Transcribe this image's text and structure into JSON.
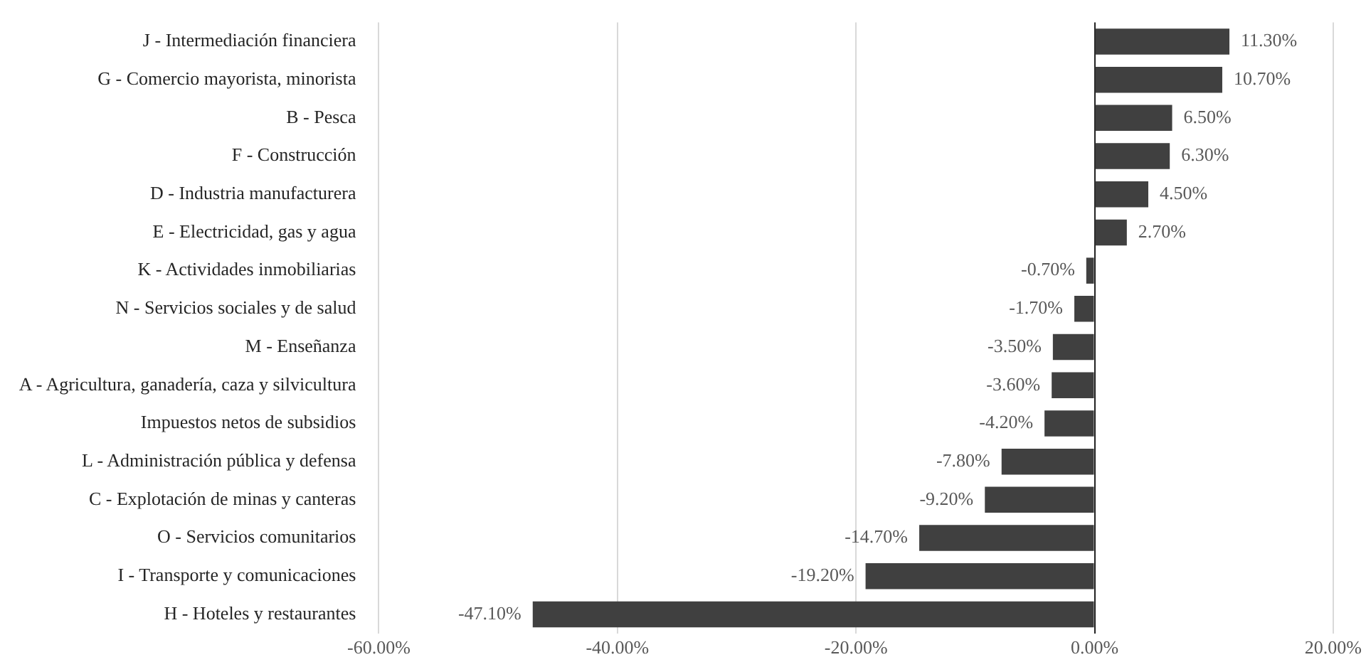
{
  "chart_data": {
    "type": "bar",
    "orientation": "horizontal",
    "categories": [
      "J - Intermediación financiera",
      "G - Comercio mayorista, minorista",
      "B - Pesca",
      "F - Construcción",
      "D - Industria manufacturera",
      "E - Electricidad, gas y agua",
      "K - Actividades inmobiliarias",
      "N - Servicios sociales y de salud",
      "M - Enseñanza",
      "A - Agricultura, ganadería, caza y silvicultura",
      "Impuestos netos de subsidios",
      "L - Administración pública y defensa",
      "C - Explotación de minas y canteras",
      "O - Servicios comunitarios",
      "I - Transporte y comunicaciones",
      "H - Hoteles y restaurantes"
    ],
    "values": [
      11.3,
      10.7,
      6.5,
      6.3,
      4.5,
      2.7,
      -0.7,
      -1.7,
      -3.5,
      -3.6,
      -4.2,
      -7.8,
      -9.2,
      -14.7,
      -19.2,
      -47.1
    ],
    "value_labels": [
      "11.30%",
      "10.70%",
      "6.50%",
      "6.30%",
      "4.50%",
      "2.70%",
      "-0.70%",
      "-1.70%",
      "-3.50%",
      "-3.60%",
      "-4.20%",
      "-7.80%",
      "-9.20%",
      "-14.70%",
      "-19.20%",
      "-47.10%"
    ],
    "color": "#404040",
    "xlim": [
      -60,
      20
    ],
    "xticks": [
      {
        "value": -60,
        "label": "-60.00%"
      },
      {
        "value": -40,
        "label": "-40.00%"
      },
      {
        "value": -20,
        "label": "-20.00%"
      },
      {
        "value": 0,
        "label": "0.00%"
      },
      {
        "value": 20,
        "label": "20.00%"
      }
    ],
    "grid": "x",
    "legend": false
  }
}
